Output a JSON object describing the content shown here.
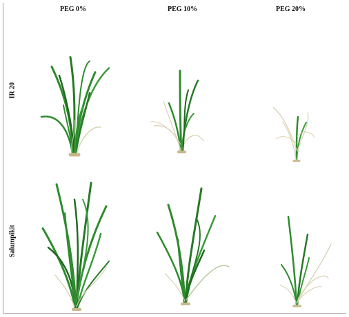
{
  "figure": {
    "column_headers": [
      "PEG 0%",
      "PEG 10%",
      "PEG 20%"
    ],
    "row_labels": [
      "IR 20",
      "Salumpikit"
    ]
  },
  "colors": {
    "leaf_green": "#2e8b2e",
    "leaf_dark": "#1f6b1f",
    "leaf_dry": "#d8d0b0",
    "base_tan": "#c8b88a",
    "frame": "#9a9a9a"
  },
  "photos": [
    {
      "variety": "IR 20",
      "treatment": "PEG 0%",
      "plant": "healthy-tall"
    },
    {
      "variety": "IR 20",
      "treatment": "PEG 10%",
      "plant": "medium-wilting"
    },
    {
      "variety": "IR 20",
      "treatment": "PEG 20%",
      "plant": "small-dry"
    },
    {
      "variety": "Salumpikit",
      "treatment": "PEG 0%",
      "plant": "healthy-bushy"
    },
    {
      "variety": "Salumpikit",
      "treatment": "PEG 10%",
      "plant": "healthy-medium"
    },
    {
      "variety": "Salumpikit",
      "treatment": "PEG 20%",
      "plant": "medium-partly-dry"
    }
  ]
}
